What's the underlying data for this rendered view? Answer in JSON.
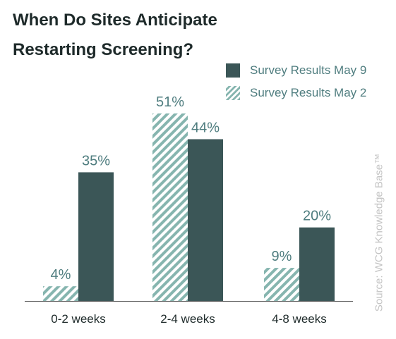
{
  "chart_data": {
    "type": "bar",
    "title": "When Do Sites Anticipate Restarting Screening?",
    "categories": [
      "0-2 weeks",
      "2-4 weeks",
      "4-8 weeks"
    ],
    "series": [
      {
        "name": "Survey Results May 2",
        "values": [
          4,
          51,
          9
        ],
        "value_labels": [
          "4%",
          "51%",
          "9%"
        ],
        "style": "hatched",
        "color": "#86b5af"
      },
      {
        "name": "Survey Results May 9",
        "values": [
          35,
          44,
          20
        ],
        "value_labels": [
          "35%",
          "44%",
          "20%"
        ],
        "style": "solid",
        "color": "#3b5657"
      }
    ],
    "legend_order": [
      "Survey Results May 9",
      "Survey Results May 2"
    ],
    "legend_position": "top-right",
    "ylim": [
      0,
      51
    ],
    "grid": false,
    "xlabel": "",
    "ylabel": ""
  },
  "source_note": "Source: WCG Knowledge Base™",
  "colors": {
    "title": "#1e2a2a",
    "axis": "#555555",
    "value_label": "#4f7d7f",
    "tick_label": "#1e2a2a",
    "source": "#c4c4c4"
  }
}
